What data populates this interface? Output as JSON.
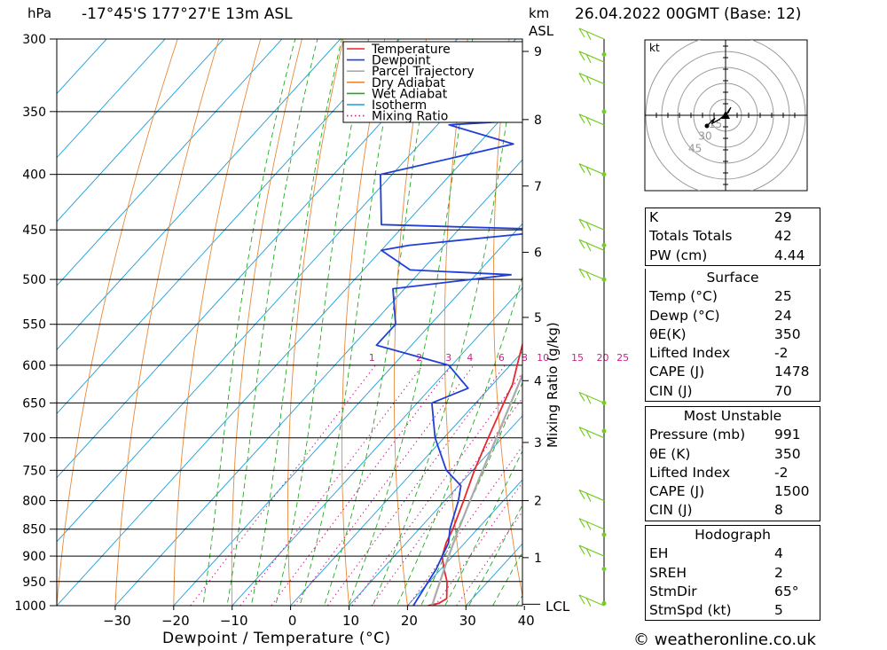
{
  "header": {
    "location": "-17°45'S 177°27'E 13m ASL",
    "datetime": "26.04.2022 00GMT (Base: 12)",
    "left_unit": "hPa",
    "km_label": "km",
    "asl_label": "ASL"
  },
  "footer": {
    "credit": "© weatheronline.co.uk"
  },
  "colors": {
    "temperature": "#e8262b",
    "dewpoint": "#1f3fd8",
    "parcel": "#aaaaaa",
    "dry_adiabat": "#e8893a",
    "wet_adiabat": "#22aa22",
    "isotherm": "#1b9fd8",
    "mixing_ratio": "#cc2288",
    "wind": "#77cc22"
  },
  "chart_data": {
    "type": "line",
    "chart_kind": "skew-T log-p sounding",
    "xlabel": "Dewpoint / Temperature (°C)",
    "ylabel": "hPa",
    "right_axis_label": "Mixing Ratio (g/kg)",
    "xlim": [
      -40,
      40
    ],
    "ylim": [
      1000,
      300
    ],
    "y_scale": "log",
    "x_ticks": [
      -30,
      -20,
      -10,
      0,
      10,
      20,
      30,
      40
    ],
    "pressure_levels": [
      300,
      350,
      400,
      450,
      500,
      550,
      600,
      650,
      700,
      750,
      800,
      850,
      900,
      950,
      1000
    ],
    "km_levels": [
      {
        "km": "1",
        "p": 903
      },
      {
        "km": "2",
        "p": 800
      },
      {
        "km": "3",
        "p": 707
      },
      {
        "km": "4",
        "p": 620
      },
      {
        "km": "5",
        "p": 542
      },
      {
        "km": "6",
        "p": 472
      },
      {
        "km": "7",
        "p": 410
      },
      {
        "km": "8",
        "p": 356
      },
      {
        "km": "9",
        "p": 308
      }
    ],
    "lcl_label": "LCL",
    "lcl_pressure": 997,
    "mixing_ratio_labels": [
      "1",
      "2",
      "3",
      "4",
      "6",
      "8",
      "10",
      "15",
      "20",
      "25"
    ],
    "mixing_ratio_values": [
      1,
      2,
      3,
      4,
      6,
      8,
      10,
      15,
      20,
      25
    ],
    "mixing_ratio_label_pressure": 600,
    "legend": {
      "placement": "top-right of plot",
      "entries": [
        "Temperature",
        "Dewpoint",
        "Parcel Trajectory",
        "Dry Adiabat",
        "Wet Adiabat",
        "Isotherm",
        "Mixing Ratio"
      ]
    },
    "series": [
      {
        "name": "Temperature",
        "color": "#e8262b",
        "points": [
          [
            1000,
            23.5
          ],
          [
            995,
            25
          ],
          [
            985,
            25.6
          ],
          [
            950,
            23
          ],
          [
            925,
            20.5
          ],
          [
            900,
            18.2
          ],
          [
            875,
            16.8
          ],
          [
            850,
            15.8
          ],
          [
            800,
            13.2
          ],
          [
            750,
            10.3
          ],
          [
            700,
            7.6
          ],
          [
            650,
            4.8
          ],
          [
            625,
            3.4
          ],
          [
            600,
            1.2
          ],
          [
            550,
            -3.4
          ],
          [
            500,
            -8.3
          ],
          [
            475,
            -11.2
          ],
          [
            460,
            -14.3
          ],
          [
            450,
            -16.0
          ],
          [
            425,
            -18.0
          ],
          [
            400,
            -22.2
          ],
          [
            375,
            -26.5
          ],
          [
            350,
            -30.8
          ],
          [
            325,
            -36.0
          ],
          [
            300,
            -41.2
          ]
        ]
      },
      {
        "name": "Dewpoint",
        "color": "#1f3fd8",
        "points": [
          [
            1000,
            21
          ],
          [
            950,
            19.8
          ],
          [
            925,
            19.2
          ],
          [
            900,
            18.2
          ],
          [
            875,
            17.2
          ],
          [
            850,
            15.3
          ],
          [
            800,
            12.3
          ],
          [
            775,
            10.4
          ],
          [
            750,
            5.5
          ],
          [
            700,
            -1.5
          ],
          [
            650,
            -7.5
          ],
          [
            630,
            -3.6
          ],
          [
            600,
            -10.5
          ],
          [
            575,
            -26
          ],
          [
            550,
            -26
          ],
          [
            510,
            -32
          ],
          [
            495,
            -14
          ],
          [
            490,
            -32
          ],
          [
            470,
            -40
          ],
          [
            465,
            -36
          ],
          [
            450,
            -12
          ],
          [
            445,
            -44
          ],
          [
            400,
            -52
          ],
          [
            375,
            -34
          ],
          [
            360,
            -48
          ],
          [
            355,
            -30
          ],
          [
            340,
            -54
          ],
          [
            320,
            -50
          ],
          [
            310,
            -58
          ],
          [
            305,
            -42
          ],
          [
            300,
            -44
          ]
        ]
      },
      {
        "name": "Parcel Trajectory",
        "color": "#aaaaaa",
        "points": [
          [
            1000,
            24.2
          ],
          [
            975,
            23
          ],
          [
            950,
            21.8
          ],
          [
            900,
            19.3
          ],
          [
            850,
            16.8
          ],
          [
            800,
            14.3
          ],
          [
            750,
            11.7
          ],
          [
            700,
            9.0
          ],
          [
            650,
            6.0
          ],
          [
            600,
            2.8
          ],
          [
            550,
            -0.5
          ],
          [
            500,
            -4.3
          ],
          [
            450,
            -8.8
          ],
          [
            400,
            -14.5
          ],
          [
            375,
            -17.8
          ],
          [
            355,
            -21.5
          ]
        ]
      }
    ],
    "indices": [
      {
        "label": "K",
        "value": "29"
      },
      {
        "label": "Totals Totals",
        "value": "42"
      },
      {
        "label": "PW (cm)",
        "value": "4.44"
      }
    ],
    "surface": {
      "title": "Surface",
      "rows": [
        {
          "label": "Temp (°C)",
          "value": "25"
        },
        {
          "label": "Dewp (°C)",
          "value": "24"
        },
        {
          "label": "θE(K)",
          "value": "350"
        },
        {
          "label": "Lifted Index",
          "value": "-2"
        },
        {
          "label": "CAPE (J)",
          "value": "1478"
        },
        {
          "label": "CIN (J)",
          "value": "70"
        }
      ]
    },
    "most_unstable": {
      "title": "Most Unstable",
      "rows": [
        {
          "label": "Pressure (mb)",
          "value": "991"
        },
        {
          "label": "θE (K)",
          "value": "350"
        },
        {
          "label": "Lifted Index",
          "value": "-2"
        },
        {
          "label": "CAPE (J)",
          "value": "1500"
        },
        {
          "label": "CIN (J)",
          "value": "8"
        }
      ]
    },
    "hodograph_stats": {
      "title": "Hodograph",
      "rows": [
        {
          "label": "EH",
          "value": "4"
        },
        {
          "label": "SREH",
          "value": "2"
        },
        {
          "label": "StmDir",
          "value": "65°"
        },
        {
          "label": "StmSpd (kt)",
          "value": "5"
        }
      ]
    },
    "hodograph": {
      "unit_label": "kt",
      "ring_labels": [
        "15",
        "30",
        "45"
      ],
      "ring_values": [
        15,
        30,
        45
      ],
      "trace": [
        [
          0,
          0
        ],
        [
          2,
          3
        ],
        [
          1,
          1
        ],
        [
          -3,
          -2
        ],
        [
          -5,
          -3
        ],
        [
          -4,
          -1
        ],
        [
          -7,
          -4
        ]
      ]
    },
    "wind_profile": {
      "barb_pressures": [
        300,
        315,
        330,
        360,
        400,
        450,
        470,
        500,
        650,
        700,
        800,
        850,
        900,
        1000
      ],
      "dot_pressures": [
        310,
        350,
        400,
        465,
        500,
        650,
        690,
        860,
        925,
        995
      ]
    }
  }
}
